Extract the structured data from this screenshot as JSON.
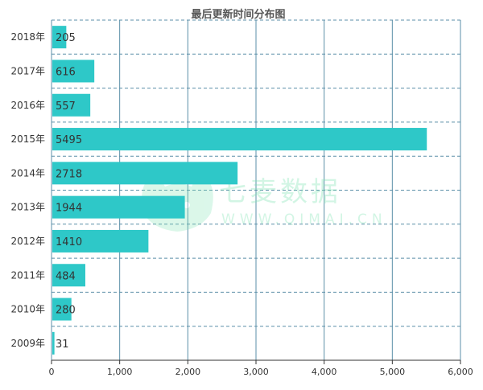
{
  "chart_data": {
    "type": "bar",
    "orientation": "horizontal",
    "title": "最后更新时间分布图",
    "categories": [
      "2018年",
      "2017年",
      "2016年",
      "2015年",
      "2014年",
      "2013年",
      "2012年",
      "2011年",
      "2010年",
      "2009年"
    ],
    "values": [
      205,
      616,
      557,
      5495,
      2718,
      1944,
      1410,
      484,
      280,
      31
    ],
    "xlim": [
      0,
      6000
    ],
    "xticks": [
      "0",
      "1,000",
      "2,000",
      "3,000",
      "4,000",
      "5,000",
      "6,000"
    ],
    "grid": true,
    "bar_color": "#2ec8c8",
    "grid_color": "#5b8fa8"
  },
  "watermark": {
    "brand": "七麦数据",
    "url": "WWW.QIMAI.CN"
  }
}
